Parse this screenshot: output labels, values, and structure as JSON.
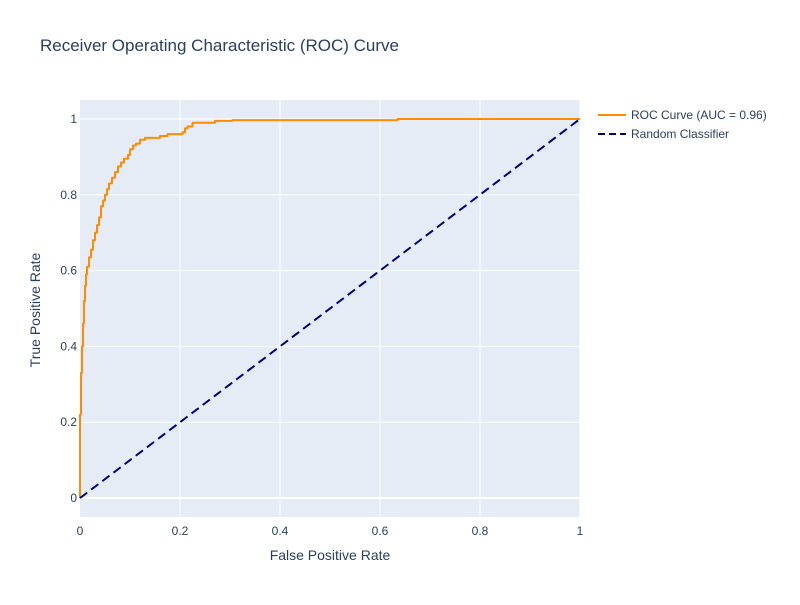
{
  "chart_data": {
    "type": "line",
    "title": "Receiver Operating Characteristic (ROC) Curve",
    "xlabel": "False Positive Rate",
    "ylabel": "True Positive Rate",
    "xlim": [
      0,
      1
    ],
    "ylim": [
      -0.05,
      1.05
    ],
    "x_ticks": [
      0,
      0.2,
      0.4,
      0.6,
      0.8,
      1
    ],
    "x_tick_labels": [
      "0",
      "0.2",
      "0.4",
      "0.6",
      "0.8",
      "1"
    ],
    "y_ticks": [
      0,
      0.2,
      0.4,
      0.6,
      0.8,
      1
    ],
    "y_tick_labels": [
      "0",
      "0.2",
      "0.4",
      "0.6",
      "0.8",
      "1"
    ],
    "grid": true,
    "legend_position": "top-right outside",
    "plot_background": "#e5ecf6",
    "series": [
      {
        "name": "ROC Curve (AUC = 0.96)",
        "color": "#ff8c00",
        "dash": "solid",
        "x": [
          0,
          0,
          0.002,
          0.002,
          0.004,
          0.004,
          0.006,
          0.006,
          0.008,
          0.008,
          0.01,
          0.01,
          0.012,
          0.012,
          0.014,
          0.014,
          0.018,
          0.018,
          0.022,
          0.022,
          0.026,
          0.026,
          0.03,
          0.03,
          0.034,
          0.034,
          0.038,
          0.038,
          0.042,
          0.042,
          0.046,
          0.046,
          0.05,
          0.05,
          0.054,
          0.054,
          0.058,
          0.058,
          0.064,
          0.064,
          0.07,
          0.07,
          0.076,
          0.076,
          0.082,
          0.082,
          0.088,
          0.088,
          0.096,
          0.096,
          0.1,
          0.1,
          0.106,
          0.106,
          0.112,
          0.112,
          0.12,
          0.12,
          0.13,
          0.13,
          0.16,
          0.16,
          0.175,
          0.175,
          0.205,
          0.205,
          0.21,
          0.21,
          0.215,
          0.215,
          0.225,
          0.225,
          0.27,
          0.27,
          0.305,
          0.305,
          0.635,
          0.635,
          1.0
        ],
        "y": [
          0,
          0.22,
          0.22,
          0.33,
          0.33,
          0.4,
          0.4,
          0.46,
          0.46,
          0.52,
          0.52,
          0.56,
          0.56,
          0.59,
          0.59,
          0.61,
          0.61,
          0.635,
          0.635,
          0.655,
          0.655,
          0.68,
          0.68,
          0.7,
          0.7,
          0.72,
          0.72,
          0.74,
          0.74,
          0.77,
          0.77,
          0.785,
          0.785,
          0.8,
          0.8,
          0.815,
          0.815,
          0.83,
          0.83,
          0.845,
          0.845,
          0.86,
          0.86,
          0.875,
          0.875,
          0.885,
          0.885,
          0.895,
          0.895,
          0.905,
          0.905,
          0.92,
          0.92,
          0.93,
          0.93,
          0.935,
          0.935,
          0.945,
          0.945,
          0.95,
          0.95,
          0.955,
          0.955,
          0.96,
          0.96,
          0.965,
          0.965,
          0.975,
          0.975,
          0.98,
          0.98,
          0.99,
          0.99,
          0.995,
          0.995,
          0.997,
          0.997,
          1.0,
          1.0
        ]
      },
      {
        "name": "Random Classifier",
        "color": "#000080",
        "dash": "dash",
        "x": [
          0,
          1
        ],
        "y": [
          0,
          1
        ]
      }
    ]
  }
}
